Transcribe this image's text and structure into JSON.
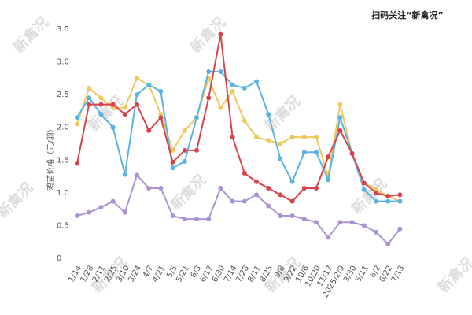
{
  "chart_data": {
    "type": "line",
    "y_label": "鸡苗价格（元/羽）",
    "annotation": "扫码关注“新禽况”",
    "watermark": "新禽况",
    "categories": [
      "1/14",
      "1/28",
      "2/11",
      "2/25",
      "3/10",
      "3/24",
      "4/7",
      "4/21",
      "5/5",
      "5/21",
      "6/3",
      "6/17",
      "6/30",
      "7/14",
      "7/28",
      "8/11",
      "8/25",
      "9/8",
      "9/22",
      "10/6",
      "10/20",
      "11/17",
      "2025/2/9",
      "3/30",
      "5/11",
      "6/2",
      "6/22",
      "7/13"
    ],
    "series": [
      {
        "color": "#efc95e",
        "values": [
          2.05,
          2.6,
          2.45,
          2.3,
          2.3,
          2.75,
          2.65,
          2.2,
          1.65,
          1.95,
          2.15,
          2.75,
          2.3,
          2.55,
          2.1,
          1.85,
          1.8,
          1.75,
          1.85,
          1.85,
          1.85,
          1.25,
          2.35,
          1.6,
          1.15,
          1.05,
          0.95,
          0.87
        ]
      },
      {
        "color": "#5bb3e2",
        "values": [
          2.15,
          2.45,
          2.2,
          2.0,
          1.28,
          2.5,
          2.65,
          2.55,
          1.38,
          1.48,
          2.15,
          2.85,
          2.85,
          2.65,
          2.6,
          2.7,
          2.2,
          1.52,
          1.17,
          1.62,
          1.62,
          1.2,
          2.15,
          1.6,
          1.05,
          0.87,
          0.87,
          0.87
        ]
      },
      {
        "color": "#d8434b",
        "values": [
          1.45,
          2.35,
          2.35,
          2.35,
          2.2,
          2.35,
          1.95,
          2.15,
          1.47,
          1.65,
          1.65,
          2.45,
          3.42,
          1.85,
          1.3,
          1.17,
          1.07,
          0.97,
          0.87,
          1.07,
          1.07,
          1.55,
          1.95,
          1.6,
          1.15,
          1.0,
          0.95,
          0.97
        ]
      },
      {
        "color": "#ab93d3",
        "values": [
          0.65,
          0.7,
          0.78,
          0.87,
          0.7,
          1.27,
          1.07,
          1.07,
          0.65,
          0.6,
          0.6,
          0.6,
          1.07,
          0.87,
          0.87,
          0.97,
          0.8,
          0.65,
          0.65,
          0.6,
          0.55,
          0.32,
          0.55,
          0.55,
          0.5,
          0.4,
          0.22,
          0.45
        ]
      }
    ],
    "ylim": [
      0,
      3.5
    ],
    "yticks": [
      0,
      0.5,
      {
        "value": 1,
        "label": "1.0"
      },
      1.5,
      {
        "value": 2,
        "label": "2.0"
      },
      2.5,
      {
        "value": 3,
        "label": "3.0"
      },
      3.5
    ],
    "grid": false
  }
}
